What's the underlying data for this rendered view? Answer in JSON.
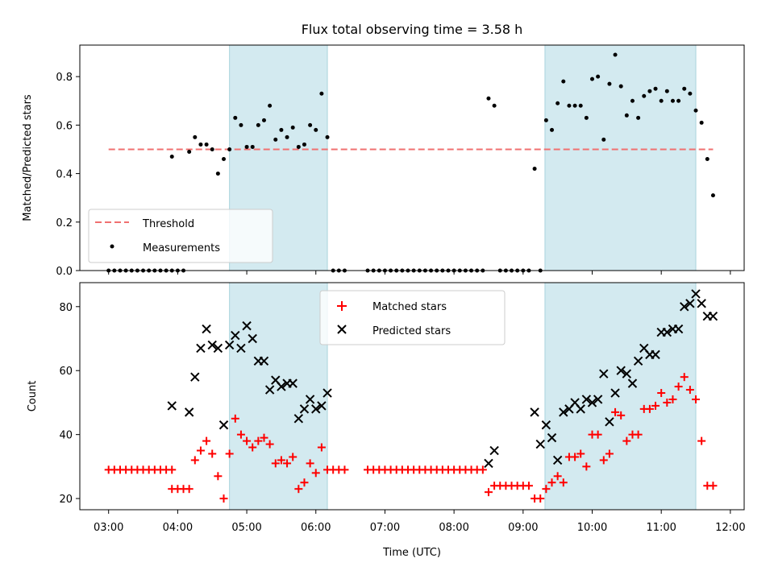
{
  "chart_data": [
    {
      "type": "scatter",
      "title": "Flux total observing time = 3.58 h",
      "xlabel": "",
      "ylabel": "Matched/Predicted stars",
      "xlim": [
        "02:35",
        "12:12"
      ],
      "ylim": [
        0,
        0.93
      ],
      "yticks": [
        0.0,
        0.2,
        0.4,
        0.6,
        0.8
      ],
      "ytick_labels": [
        "0.0",
        "0.2",
        "0.4",
        "0.6",
        "0.8"
      ],
      "shaded_ranges": [
        [
          "04:45",
          "06:10"
        ],
        [
          "09:19",
          "11:30"
        ]
      ],
      "threshold": {
        "name": "Threshold",
        "x": [
          "03:00",
          "11:45"
        ],
        "y": 0.5,
        "color": "#f07070"
      },
      "measurements": {
        "name": "Measurements",
        "color": "#000000",
        "x": [
          "03:00",
          "03:05",
          "03:10",
          "03:15",
          "03:20",
          "03:25",
          "03:30",
          "03:35",
          "03:40",
          "03:45",
          "03:50",
          "03:55",
          "03:55",
          "04:00",
          "04:05",
          "04:10",
          "04:15",
          "04:20",
          "04:25",
          "04:30",
          "04:35",
          "04:40",
          "04:45",
          "04:50",
          "04:55",
          "05:00",
          "05:05",
          "05:10",
          "05:15",
          "05:20",
          "05:25",
          "05:30",
          "05:35",
          "05:40",
          "05:45",
          "05:50",
          "05:55",
          "06:00",
          "06:05",
          "06:10",
          "06:15",
          "06:20",
          "06:25",
          "06:45",
          "06:50",
          "06:55",
          "07:00",
          "07:05",
          "07:10",
          "07:15",
          "07:20",
          "07:25",
          "07:30",
          "07:35",
          "07:40",
          "07:45",
          "07:50",
          "07:55",
          "08:00",
          "08:05",
          "08:10",
          "08:15",
          "08:20",
          "08:25",
          "08:30",
          "08:35",
          "08:40",
          "08:45",
          "08:50",
          "08:55",
          "09:00",
          "09:05",
          "09:10",
          "09:15",
          "09:20",
          "09:25",
          "09:30",
          "09:35",
          "09:40",
          "09:45",
          "09:50",
          "09:55",
          "10:00",
          "10:05",
          "10:10",
          "10:15",
          "10:20",
          "10:25",
          "10:30",
          "10:35",
          "10:40",
          "10:45",
          "10:50",
          "10:55",
          "11:00",
          "11:05",
          "11:10",
          "11:15",
          "11:20",
          "11:25",
          "11:30",
          "11:35",
          "11:40",
          "11:45"
        ],
        "y": [
          0,
          0,
          0,
          0,
          0,
          0,
          0,
          0,
          0,
          0,
          0,
          0,
          0.47,
          0.0,
          0.0,
          0.49,
          0.55,
          0.52,
          0.52,
          0.5,
          0.4,
          0.46,
          0.5,
          0.63,
          0.6,
          0.51,
          0.51,
          0.6,
          0.62,
          0.68,
          0.54,
          0.58,
          0.55,
          0.59,
          0.51,
          0.52,
          0.6,
          0.58,
          0.73,
          0.55,
          0.0,
          0.0,
          0.0,
          0,
          0,
          0,
          0,
          0,
          0,
          0,
          0,
          0,
          0,
          0,
          0,
          0,
          0,
          0,
          0,
          0,
          0,
          0,
          0,
          0,
          0.71,
          0.68,
          0,
          0,
          0,
          0,
          0,
          0,
          0.42,
          0.0,
          0.62,
          0.58,
          0.69,
          0.78,
          0.68,
          0.68,
          0.68,
          0.63,
          0.79,
          0.8,
          0.54,
          0.77,
          0.89,
          0.76,
          0.64,
          0.7,
          0.63,
          0.72,
          0.74,
          0.75,
          0.7,
          0.74,
          0.7,
          0.7,
          0.75,
          0.73,
          0.66,
          0.61,
          0.46,
          0.31
        ]
      }
    },
    {
      "type": "scatter",
      "xlabel": "Time (UTC)",
      "ylabel": "Count",
      "xlim": [
        "02:35",
        "12:12"
      ],
      "ylim": [
        16.5,
        87.5
      ],
      "yticks": [
        20,
        40,
        60,
        80
      ],
      "ytick_labels": [
        "20",
        "40",
        "60",
        "80"
      ],
      "xticks": [
        "03:00",
        "04:00",
        "05:00",
        "06:00",
        "07:00",
        "08:00",
        "09:00",
        "10:00",
        "11:00",
        "12:00"
      ],
      "shaded_ranges": [
        [
          "04:45",
          "06:10"
        ],
        [
          "09:19",
          "11:30"
        ]
      ],
      "series": [
        {
          "name": "Matched stars",
          "marker": "+",
          "color": "#ff0000",
          "x": [
            "03:00",
            "03:05",
            "03:10",
            "03:15",
            "03:20",
            "03:25",
            "03:30",
            "03:35",
            "03:40",
            "03:45",
            "03:50",
            "03:55",
            "03:55",
            "04:00",
            "04:05",
            "04:10",
            "04:15",
            "04:20",
            "04:25",
            "04:30",
            "04:35",
            "04:40",
            "04:45",
            "04:50",
            "04:55",
            "05:00",
            "05:05",
            "05:10",
            "05:15",
            "05:20",
            "05:25",
            "05:30",
            "05:35",
            "05:40",
            "05:45",
            "05:50",
            "05:55",
            "06:00",
            "06:05",
            "06:10",
            "06:15",
            "06:20",
            "06:25",
            "06:45",
            "06:50",
            "06:55",
            "07:00",
            "07:05",
            "07:10",
            "07:15",
            "07:20",
            "07:25",
            "07:30",
            "07:35",
            "07:40",
            "07:45",
            "07:50",
            "07:55",
            "08:00",
            "08:05",
            "08:10",
            "08:15",
            "08:20",
            "08:25",
            "08:30",
            "08:35",
            "08:40",
            "08:45",
            "08:50",
            "08:55",
            "09:00",
            "09:05",
            "09:10",
            "09:15",
            "09:20",
            "09:25",
            "09:30",
            "09:35",
            "09:40",
            "09:45",
            "09:50",
            "09:55",
            "10:00",
            "10:05",
            "10:10",
            "10:15",
            "10:20",
            "10:25",
            "10:30",
            "10:35",
            "10:40",
            "10:45",
            "10:50",
            "10:55",
            "11:00",
            "11:05",
            "11:10",
            "11:15",
            "11:20",
            "11:25",
            "11:30",
            "11:35",
            "11:40",
            "11:45"
          ],
          "y": [
            29,
            29,
            29,
            29,
            29,
            29,
            29,
            29,
            29,
            29,
            29,
            29,
            23,
            23,
            23,
            23,
            32,
            35,
            38,
            34,
            27,
            20,
            34,
            45,
            40,
            38,
            36,
            38,
            39,
            37,
            31,
            32,
            31,
            33,
            23,
            25,
            31,
            28,
            36,
            29,
            29,
            29,
            29,
            29,
            29,
            29,
            29,
            29,
            29,
            29,
            29,
            29,
            29,
            29,
            29,
            29,
            29,
            29,
            29,
            29,
            29,
            29,
            29,
            29,
            22,
            24,
            24,
            24,
            24,
            24,
            24,
            24,
            20,
            20,
            23,
            25,
            27,
            25,
            33,
            33,
            34,
            30,
            40,
            40,
            32,
            34,
            47,
            46,
            38,
            40,
            40,
            48,
            48,
            49,
            53,
            50,
            51,
            55,
            58,
            54,
            51,
            38,
            24,
            24
          ]
        },
        {
          "name": "Predicted stars",
          "marker": "x",
          "color": "#000000",
          "x": [
            "03:55",
            "04:10",
            "04:15",
            "04:20",
            "04:25",
            "04:30",
            "04:35",
            "04:40",
            "04:45",
            "04:50",
            "04:55",
            "05:00",
            "05:05",
            "05:10",
            "05:15",
            "05:20",
            "05:25",
            "05:30",
            "05:35",
            "05:40",
            "05:45",
            "05:50",
            "05:55",
            "06:00",
            "06:05",
            "06:10",
            "08:30",
            "08:35",
            "09:10",
            "09:15",
            "09:20",
            "09:25",
            "09:30",
            "09:35",
            "09:40",
            "09:45",
            "09:50",
            "09:55",
            "10:00",
            "10:05",
            "10:10",
            "10:15",
            "10:20",
            "10:25",
            "10:30",
            "10:35",
            "10:40",
            "10:45",
            "10:50",
            "10:55",
            "11:00",
            "11:05",
            "11:10",
            "11:15",
            "11:20",
            "11:25",
            "11:30",
            "11:35",
            "11:40",
            "11:45"
          ],
          "y": [
            49,
            47,
            58,
            67,
            73,
            68,
            67,
            43,
            68,
            71,
            67,
            74,
            70,
            63,
            63,
            54,
            57,
            55,
            56,
            56,
            45,
            48,
            51,
            48,
            49,
            53,
            31,
            35,
            47,
            37,
            43,
            39,
            32,
            47,
            48,
            50,
            48,
            51,
            50,
            51,
            59,
            44,
            53,
            60,
            59,
            56,
            63,
            67,
            65,
            65,
            72,
            72,
            73,
            73,
            80,
            81,
            84,
            81,
            77,
            77
          ]
        }
      ]
    }
  ]
}
